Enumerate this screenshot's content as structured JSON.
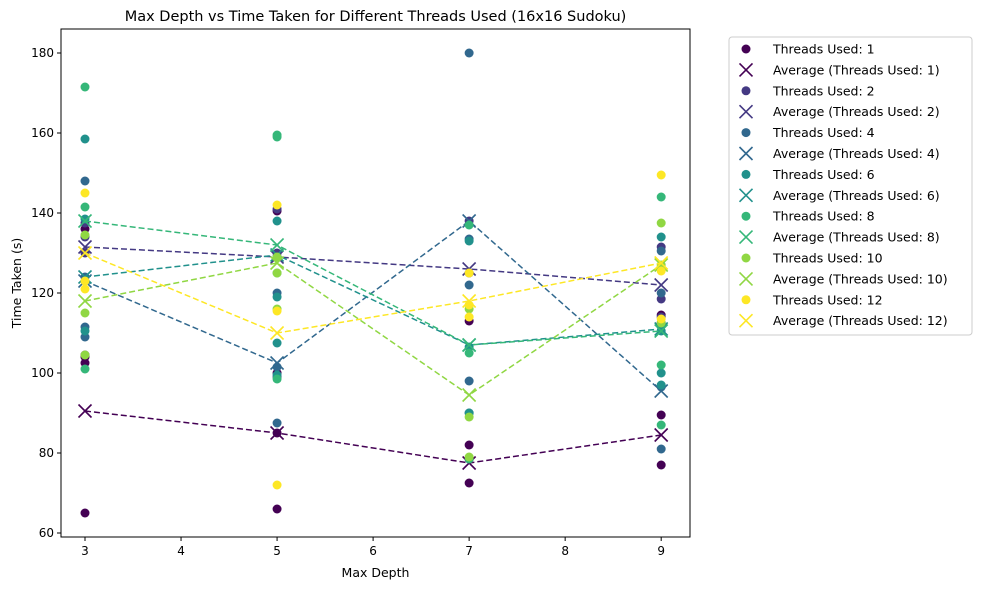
{
  "chart_data": {
    "type": "scatter",
    "title": "Max Depth vs Time Taken for Different Threads Used (16x16 Sudoku)",
    "xlabel": "Max Depth",
    "ylabel": "Time Taken (s)",
    "xlim": [
      2.75,
      9.3
    ],
    "ylim": [
      59,
      186
    ],
    "xticks": [
      3,
      4,
      5,
      6,
      7,
      8,
      9
    ],
    "yticks": [
      60,
      80,
      100,
      120,
      140,
      160,
      180
    ],
    "legend_position": "outside-right",
    "grid": false,
    "series": [
      {
        "name": "Threads Used: 1",
        "avg_name": "Average (Threads Used: 1)",
        "color": "#440154",
        "points": [
          [
            3,
            65
          ],
          [
            3,
            102.5
          ],
          [
            3,
            104
          ],
          [
            3,
            104.5
          ],
          [
            3,
            136
          ],
          [
            5,
            66
          ],
          [
            5,
            85
          ],
          [
            5,
            100
          ],
          [
            5,
            140.5
          ],
          [
            7,
            72.5
          ],
          [
            7,
            82
          ],
          [
            7,
            78.5
          ],
          [
            7,
            113
          ],
          [
            9,
            77
          ],
          [
            9,
            89.5
          ],
          [
            9,
            114.5
          ],
          [
            9,
            112.5
          ]
        ],
        "avg": [
          [
            3,
            90.5
          ],
          [
            5,
            85
          ],
          [
            7,
            77.5
          ],
          [
            9,
            84.5
          ]
        ]
      },
      {
        "name": "Threads Used: 2",
        "avg_name": "Average (Threads Used: 2)",
        "color": "#443983",
        "points": [
          [
            3,
            137.5
          ],
          [
            3,
            134
          ],
          [
            3,
            130
          ],
          [
            5,
            141
          ],
          [
            5,
            130
          ],
          [
            5,
            99
          ],
          [
            7,
            138
          ],
          [
            7,
            125
          ],
          [
            9,
            131.5
          ],
          [
            9,
            118.5
          ],
          [
            9,
            114
          ]
        ],
        "avg": [
          [
            3,
            131.5
          ],
          [
            5,
            129
          ],
          [
            7,
            126
          ],
          [
            9,
            122
          ]
        ]
      },
      {
        "name": "Threads Used: 4",
        "avg_name": "Average (Threads Used: 4)",
        "color": "#31688e",
        "points": [
          [
            3,
            148
          ],
          [
            3,
            111.5
          ],
          [
            3,
            109
          ],
          [
            3,
            124
          ],
          [
            5,
            87.5
          ],
          [
            5,
            101.5
          ],
          [
            5,
            120
          ],
          [
            5,
            129
          ],
          [
            7,
            180
          ],
          [
            7,
            133.5
          ],
          [
            7,
            122
          ],
          [
            7,
            98
          ],
          [
            7,
            90
          ],
          [
            9,
            81
          ],
          [
            9,
            96.5
          ],
          [
            9,
            120
          ],
          [
            9,
            130.5
          ]
        ],
        "avg": [
          [
            3,
            123
          ],
          [
            5,
            102.5
          ],
          [
            7,
            138
          ],
          [
            9,
            95.5
          ]
        ]
      },
      {
        "name": "Threads Used: 6",
        "avg_name": "Average (Threads Used: 6)",
        "color": "#21918c",
        "points": [
          [
            3,
            158.5
          ],
          [
            3,
            138.5
          ],
          [
            3,
            110.5
          ],
          [
            5,
            138
          ],
          [
            5,
            119
          ],
          [
            5,
            107.5
          ],
          [
            5,
            99.5
          ],
          [
            7,
            133
          ],
          [
            7,
            106.5
          ],
          [
            7,
            90
          ],
          [
            9,
            134
          ],
          [
            9,
            100
          ],
          [
            9,
            110.5
          ],
          [
            9,
            97
          ]
        ],
        "avg": [
          [
            3,
            124
          ],
          [
            5,
            129.5
          ],
          [
            7,
            107
          ],
          [
            9,
            111
          ]
        ]
      },
      {
        "name": "Threads Used: 8",
        "avg_name": "Average (Threads Used: 8)",
        "color": "#35b779",
        "points": [
          [
            3,
            171.5
          ],
          [
            3,
            141.5
          ],
          [
            3,
            101
          ],
          [
            5,
            159.5
          ],
          [
            5,
            159
          ],
          [
            5,
            98.5
          ],
          [
            5,
            125
          ],
          [
            7,
            137
          ],
          [
            7,
            105
          ],
          [
            7,
            78.5
          ],
          [
            9,
            144
          ],
          [
            9,
            102
          ],
          [
            9,
            87
          ]
        ],
        "avg": [
          [
            3,
            138
          ],
          [
            5,
            132
          ],
          [
            7,
            107
          ],
          [
            9,
            110.5
          ]
        ]
      },
      {
        "name": "Threads Used: 10",
        "avg_name": "Average (Threads Used: 10)",
        "color": "#90d743",
        "points": [
          [
            3,
            134.5
          ],
          [
            3,
            115
          ],
          [
            3,
            104.5
          ],
          [
            5,
            125
          ],
          [
            5,
            116
          ],
          [
            5,
            129
          ],
          [
            7,
            116
          ],
          [
            7,
            89
          ],
          [
            7,
            79
          ],
          [
            9,
            137.5
          ],
          [
            9,
            112.5
          ],
          [
            9,
            127
          ]
        ],
        "avg": [
          [
            3,
            118
          ],
          [
            5,
            127.5
          ],
          [
            7,
            94.5
          ],
          [
            9,
            127
          ]
        ]
      },
      {
        "name": "Threads Used: 12",
        "avg_name": "Average (Threads Used: 12)",
        "color": "#fde725",
        "points": [
          [
            3,
            145
          ],
          [
            3,
            121
          ],
          [
            3,
            123
          ],
          [
            5,
            142
          ],
          [
            5,
            115.5
          ],
          [
            5,
            72
          ],
          [
            7,
            125
          ],
          [
            7,
            114
          ],
          [
            7,
            117
          ],
          [
            9,
            149.5
          ],
          [
            9,
            113.5
          ],
          [
            9,
            125.5
          ]
        ],
        "avg": [
          [
            3,
            130
          ],
          [
            5,
            110
          ],
          [
            7,
            118
          ],
          [
            9,
            127.5
          ]
        ]
      }
    ]
  }
}
